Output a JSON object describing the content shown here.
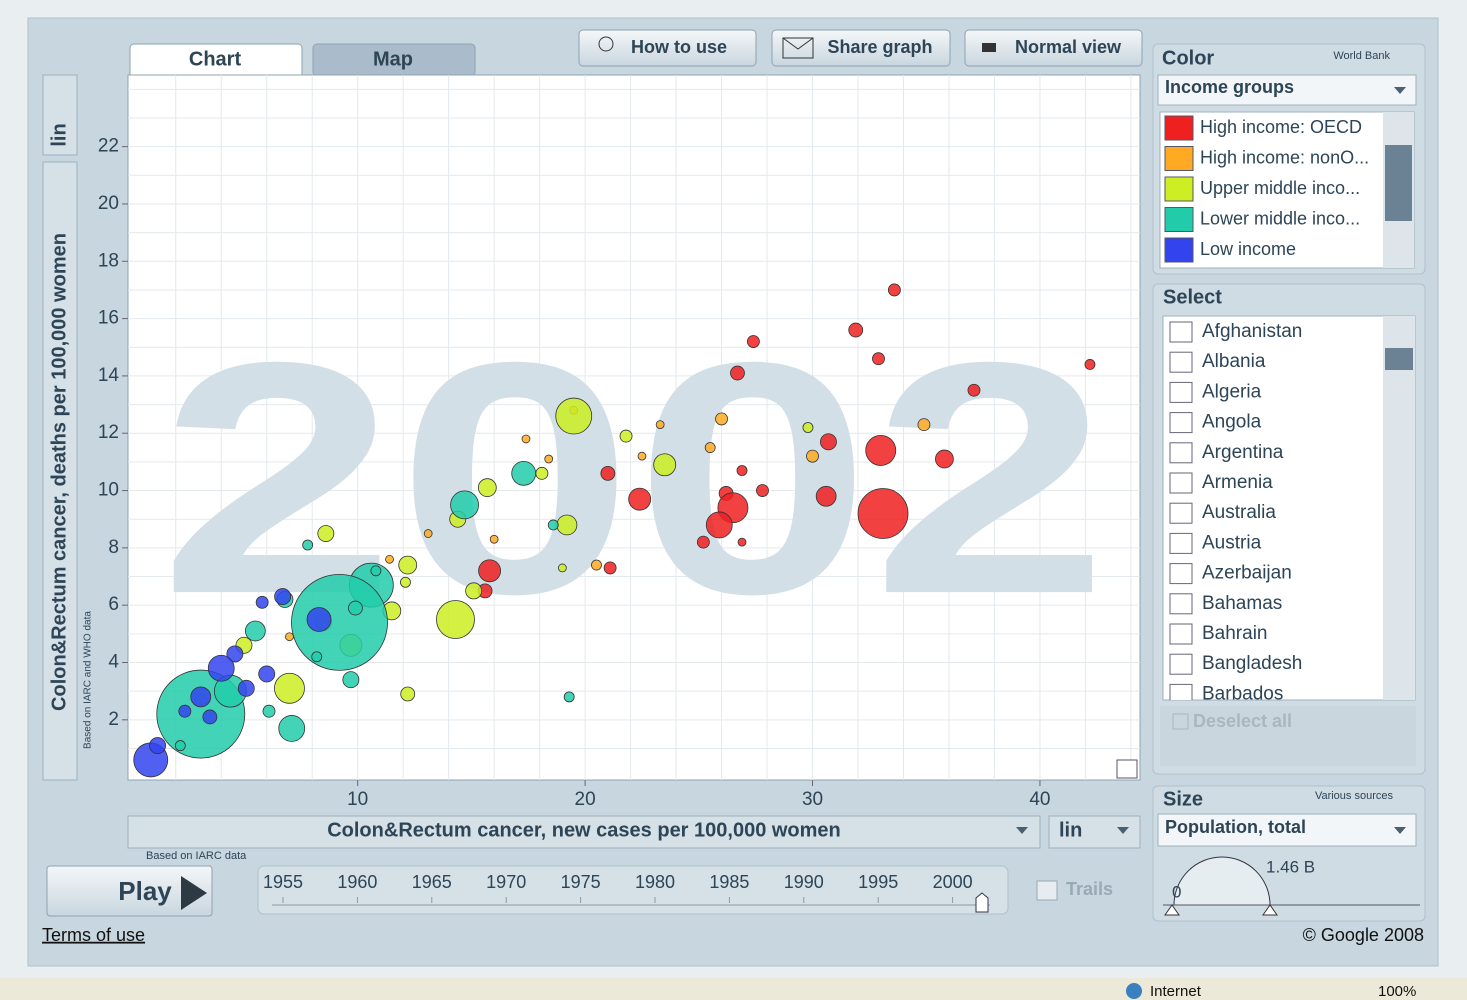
{
  "tabs": [
    "Chart",
    "Map"
  ],
  "buttons": [
    "How to use",
    "Share graph",
    "Normal view"
  ],
  "chart_data": {
    "type": "scatter",
    "x_label": "Colon&Rectum cancer, new cases per 100,000 women",
    "y_label": "Colon&Rectum cancer, deaths per 100,000 women",
    "x_source": "Based on IARC data",
    "y_source": "Based on IARC and WHO data",
    "year_label": "2002",
    "x_scale": "lin",
    "y_scale": "lin",
    "xlim": [
      -0.1,
      44.4
    ],
    "ylim": [
      -0.1,
      24.5
    ],
    "xticks": [
      10,
      20,
      30,
      40
    ],
    "yticks": [
      2,
      4,
      6,
      8,
      10,
      12,
      14,
      16,
      18,
      20,
      22
    ],
    "xgrid": [
      2,
      4,
      6,
      8,
      10,
      12,
      14,
      16,
      18,
      20,
      22,
      24,
      26,
      28,
      30,
      32,
      34,
      36,
      38,
      40,
      42,
      44
    ],
    "ygrid": [
      1,
      2,
      3,
      4,
      5,
      6,
      7,
      8,
      9,
      10,
      11,
      12,
      13,
      14,
      15,
      16,
      17,
      18,
      19,
      20,
      21,
      22,
      23,
      24
    ],
    "size_min": 0,
    "size_max": {
      "value": 1460,
      "label": "1.46 B"
    },
    "series": [
      {
        "name": "High income: OECD",
        "color": "#ee2020",
        "x": [
          33.6,
          31.9,
          32.9,
          27.4,
          26.7,
          37.1,
          42.2,
          30.7,
          33.0,
          35.8,
          21.0,
          26.9,
          27.8,
          22.4,
          26.2,
          26.5,
          25.9,
          30.6,
          33.1,
          25.2,
          26.9,
          15.8,
          15.6,
          21.1
        ],
        "y": [
          17.0,
          15.6,
          14.6,
          15.2,
          14.1,
          13.5,
          14.4,
          11.7,
          11.4,
          11.1,
          10.6,
          10.7,
          10.0,
          9.7,
          9.9,
          9.4,
          8.8,
          9.8,
          9.2,
          8.2,
          8.2,
          7.2,
          6.5,
          7.3
        ],
        "sizes": [
          23,
          31,
          23,
          23,
          31,
          23,
          16,
          41,
          143,
          51,
          31,
          16,
          23,
          77,
          31,
          143,
          107,
          63,
          396,
          23,
          10,
          77,
          31,
          23
        ]
      },
      {
        "name": "High income: nonO...",
        "color": "#ffaa22",
        "x": [
          19.5,
          17.4,
          18.4,
          23.3,
          26.0,
          25.5,
          22.5,
          30.0,
          34.9,
          20.5,
          16.0,
          13.1,
          11.4,
          7.0
        ],
        "y": [
          12.8,
          11.8,
          11.1,
          12.3,
          12.5,
          11.5,
          11.2,
          11.2,
          12.3,
          7.4,
          8.3,
          8.5,
          7.6,
          4.9
        ],
        "sizes": [
          10,
          10,
          10,
          10,
          23,
          16,
          10,
          23,
          23,
          16,
          10,
          10,
          10,
          10
        ]
      },
      {
        "name": "Upper middle inco...",
        "color": "#ccee22",
        "x": [
          19.5,
          21.8,
          23.5,
          29.8,
          15.7,
          18.1,
          19.2,
          14.4,
          8.6,
          19.0,
          12.2,
          15.1,
          14.3,
          11.5,
          9.7,
          12.1,
          12.2,
          7.0,
          5.0,
          8.5,
          3.1
        ],
        "y": [
          12.6,
          11.9,
          10.9,
          12.2,
          10.1,
          10.6,
          8.8,
          9.0,
          8.5,
          7.3,
          7.4,
          6.5,
          5.5,
          5.8,
          4.6,
          6.8,
          2.9,
          3.1,
          4.6,
          5.4,
          2.7
        ],
        "sizes": [
          205,
          23,
          77,
          16,
          51,
          23,
          63,
          41,
          41,
          10,
          51,
          41,
          229,
          51,
          77,
          16,
          31,
          143,
          41,
          41,
          23
        ]
      },
      {
        "name": "Lower middle inco...",
        "color": "#22ccaa",
        "x": [
          14.7,
          17.3,
          18.6,
          10.6,
          9.2,
          10.8,
          9.9,
          6.8,
          7.8,
          5.5,
          9.7,
          19.3,
          7.1,
          6.1,
          3.1,
          4.4,
          2.2,
          8.2
        ],
        "y": [
          9.5,
          10.6,
          8.8,
          6.7,
          5.4,
          7.2,
          5.9,
          6.2,
          8.1,
          5.1,
          3.4,
          2.8,
          1.7,
          2.3,
          2.2,
          3.0,
          1.1,
          4.2
        ],
        "sizes": [
          124,
          91,
          16,
          307,
          1460,
          16,
          31,
          41,
          16,
          63,
          41,
          16,
          107,
          23,
          1227,
          162,
          16,
          16
        ]
      },
      {
        "name": "Low income",
        "color": "#3344ee",
        "x": [
          0.9,
          1.2,
          5.8,
          6.7,
          4.6,
          6.0,
          4.0,
          5.1,
          3.1,
          2.4,
          3.5,
          8.3
        ],
        "y": [
          0.6,
          1.1,
          6.1,
          6.3,
          4.3,
          3.6,
          3.8,
          3.1,
          2.8,
          2.3,
          2.1,
          5.5
        ],
        "sizes": [
          183,
          41,
          23,
          41,
          41,
          41,
          107,
          41,
          63,
          23,
          31,
          91
        ]
      }
    ]
  },
  "color_panel": {
    "title": "Color",
    "source": "World Bank",
    "indicator": "Income groups"
  },
  "select_panel": {
    "title": "Select",
    "countries": [
      "Afghanistan",
      "Albania",
      "Algeria",
      "Angola",
      "Argentina",
      "Armenia",
      "Australia",
      "Austria",
      "Azerbaijan",
      "Bahamas",
      "Bahrain",
      "Bangladesh",
      "Barbados"
    ],
    "deselect": "Deselect all"
  },
  "size_panel": {
    "title": "Size",
    "source": "Various sources",
    "indicator": "Population, total"
  },
  "timeline": {
    "play": "Play",
    "years": [
      1955,
      1960,
      1965,
      1970,
      1975,
      1980,
      1985,
      1990,
      1995,
      2000
    ],
    "trails": "Trails"
  },
  "footer": {
    "terms": "Terms of use",
    "copyright": "© Google 2008"
  },
  "status_bar": {
    "zone": "Internet",
    "zoom": "100%"
  }
}
